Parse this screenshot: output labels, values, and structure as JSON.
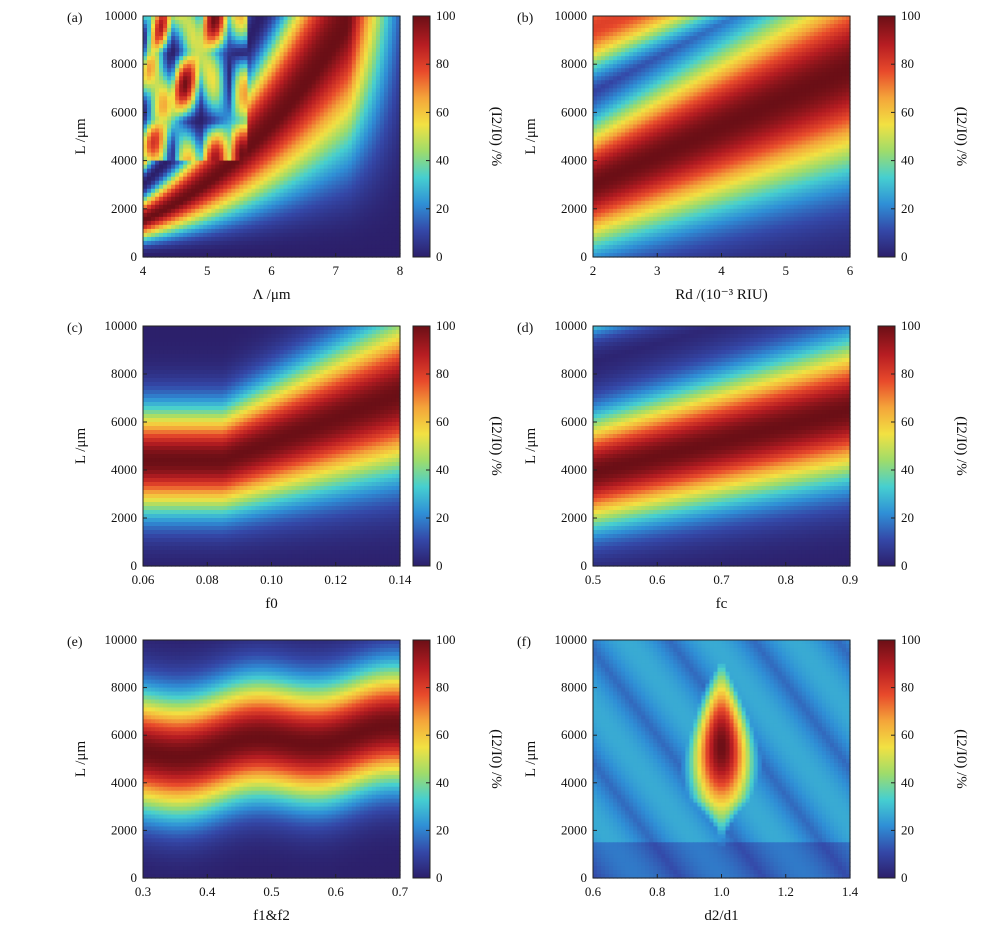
{
  "figure": {
    "title": ""
  },
  "colorbar": {
    "ticks": [
      "0",
      "20",
      "40",
      "60",
      "80",
      "100"
    ],
    "label": "(I2/I0) /%",
    "colors": [
      "#2c1f6a",
      "#3448a8",
      "#2f8fd6",
      "#46cfd0",
      "#9fdc6a",
      "#f2e142",
      "#f4a53a",
      "#e84a2b",
      "#b71d22",
      "#6b0f16"
    ]
  },
  "chart_data": [
    {
      "panel": "(a)",
      "type": "heatmap",
      "title": "",
      "xlabel": "Λ /μm",
      "ylabel": "L /μm",
      "xlim": [
        4,
        8
      ],
      "ylim": [
        0,
        10000
      ],
      "xticks": [
        "4",
        "5",
        "6",
        "7",
        "8"
      ],
      "yticks": [
        "0",
        "2000",
        "4000",
        "6000",
        "8000",
        "10000"
      ],
      "zlabel": "(I2/I0) /%",
      "zlim": [
        0,
        100
      ],
      "pattern": "multiple curved high-transmission fringes sweeping from lower-left upward; oscillating spotted region at small Λ and large L"
    },
    {
      "panel": "(b)",
      "type": "heatmap",
      "title": "",
      "xlabel": "Rd /(10⁻³ RIU)",
      "ylabel": "L /μm",
      "xlim": [
        2,
        6
      ],
      "ylim": [
        0,
        10000
      ],
      "xticks": [
        "2",
        "3",
        "4",
        "5",
        "6"
      ],
      "yticks": [
        "0",
        "2000",
        "4000",
        "6000",
        "8000",
        "10000"
      ],
      "zlabel": "(I2/I0) /%",
      "zlim": [
        0,
        100
      ],
      "pattern": "broad red band rising with Rd from L≈3000 at Rd=2 to L≈8000 at Rd=6"
    },
    {
      "panel": "(c)",
      "type": "heatmap",
      "title": "",
      "xlabel": "f0",
      "ylabel": "L /μm",
      "xlim": [
        0.06,
        0.14
      ],
      "ylim": [
        0,
        10000
      ],
      "xticks": [
        "0.06",
        "0.08",
        "0.10",
        "0.12",
        "0.14"
      ],
      "yticks": [
        "0",
        "2000",
        "4000",
        "6000",
        "8000",
        "10000"
      ],
      "zlabel": "(I2/I0) /%",
      "zlim": [
        0,
        100
      ],
      "pattern": "horizontal red band centred near L≈4500 for f0<0.085, bending upward to L≈7000 at f0=0.14"
    },
    {
      "panel": "(d)",
      "type": "heatmap",
      "title": "",
      "xlabel": "fc",
      "ylabel": "L /μm",
      "xlim": [
        0.5,
        0.9
      ],
      "ylim": [
        0,
        10000
      ],
      "xticks": [
        "0.5",
        "0.6",
        "0.7",
        "0.8",
        "0.9"
      ],
      "yticks": [
        "0",
        "2000",
        "4000",
        "6000",
        "8000",
        "10000"
      ],
      "zlabel": "(I2/I0) /%",
      "zlim": [
        0,
        100
      ],
      "pattern": "red band rising from L≈4000 at fc=0.5 to L≈6500 at fc=0.9"
    },
    {
      "panel": "(e)",
      "type": "heatmap",
      "title": "",
      "xlabel": "f1&f2",
      "ylabel": "L /μm",
      "xlim": [
        0.3,
        0.7
      ],
      "ylim": [
        0,
        10000
      ],
      "xticks": [
        "0.3",
        "0.4",
        "0.5",
        "0.6",
        "0.7"
      ],
      "yticks": [
        "0",
        "2000",
        "4000",
        "6000",
        "8000",
        "10000"
      ],
      "zlabel": "(I2/I0) /%",
      "zlim": [
        0,
        100
      ],
      "pattern": "wide red band centred near L≈5500, slightly rising with f1&f2"
    },
    {
      "panel": "(f)",
      "type": "heatmap",
      "title": "",
      "xlabel": "d2/d1",
      "ylabel": "L /μm",
      "xlim": [
        0.6,
        1.4
      ],
      "ylim": [
        0,
        10000
      ],
      "xticks": [
        "0.6",
        "0.8",
        "1.0",
        "1.2",
        "1.4"
      ],
      "yticks": [
        "0",
        "2000",
        "4000",
        "6000",
        "8000",
        "10000"
      ],
      "zlabel": "(I2/I0) /%",
      "zlim": [
        0,
        100
      ],
      "pattern": "teardrop-shaped peak at d2/d1=1.0 reaching 100% near L≈5500, low elsewhere"
    }
  ]
}
